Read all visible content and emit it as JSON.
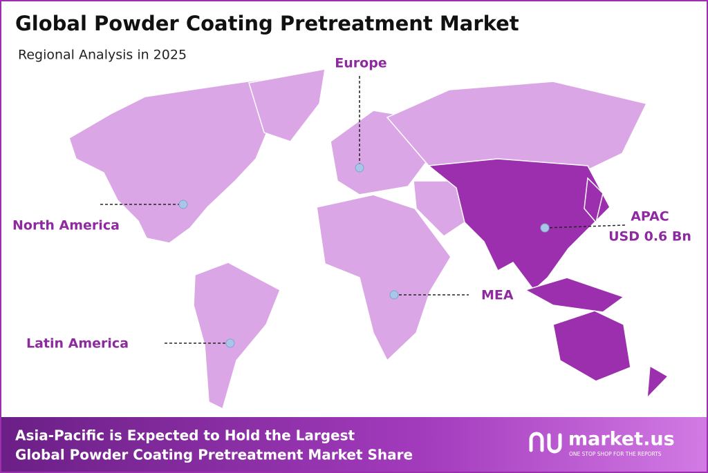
{
  "header": {
    "title": "Global Powder Coating Pretreatment Market",
    "subtitle": "Regional Analysis in 2025"
  },
  "regions": [
    {
      "label": "Europe"
    },
    {
      "label": "North America"
    },
    {
      "label": "APAC",
      "value": "USD 0.6 Bn"
    },
    {
      "label": "MEA"
    },
    {
      "label": "Latin America"
    }
  ],
  "footer": {
    "lines": [
      "Asia-Pacific is Expected to Hold the Largest",
      "Global Powder Coating Pretreatment Market Share"
    ],
    "brand": "market.us",
    "tagline": "ONE STOP SHOP FOR THE REPORTS"
  }
}
